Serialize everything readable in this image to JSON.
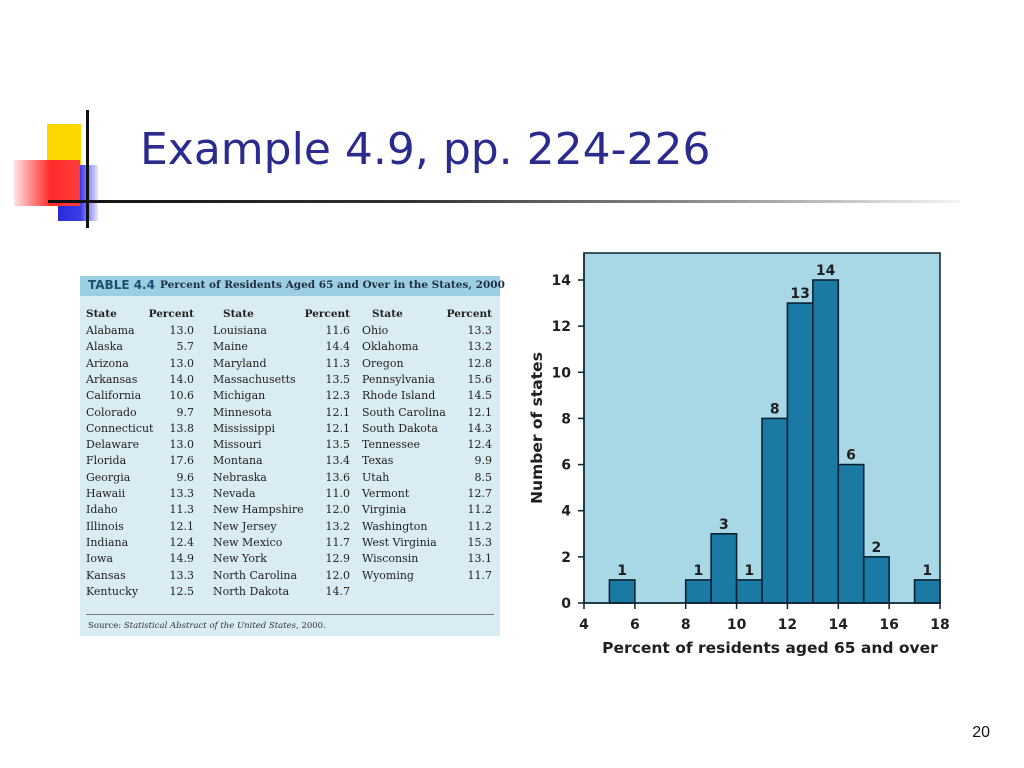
{
  "slide": {
    "title": "Example 4.9, pp. 224-226",
    "page_number": "20"
  },
  "table": {
    "label": "TABLE 4.4",
    "caption": "Percent of Residents Aged 65 and Over in the States, 2000",
    "header_state": "State",
    "header_percent": "Percent",
    "columns": [
      [
        [
          "Alabama",
          "13.0"
        ],
        [
          "Alaska",
          "5.7"
        ],
        [
          "Arizona",
          "13.0"
        ],
        [
          "Arkansas",
          "14.0"
        ],
        [
          "California",
          "10.6"
        ],
        [
          "Colorado",
          "9.7"
        ],
        [
          "Connecticut",
          "13.8"
        ],
        [
          "Delaware",
          "13.0"
        ],
        [
          "Florida",
          "17.6"
        ],
        [
          "Georgia",
          "9.6"
        ],
        [
          "Hawaii",
          "13.3"
        ],
        [
          "Idaho",
          "11.3"
        ],
        [
          "Illinois",
          "12.1"
        ],
        [
          "Indiana",
          "12.4"
        ],
        [
          "Iowa",
          "14.9"
        ],
        [
          "Kansas",
          "13.3"
        ],
        [
          "Kentucky",
          "12.5"
        ]
      ],
      [
        [
          "Louisiana",
          "11.6"
        ],
        [
          "Maine",
          "14.4"
        ],
        [
          "Maryland",
          "11.3"
        ],
        [
          "Massachusetts",
          "13.5"
        ],
        [
          "Michigan",
          "12.3"
        ],
        [
          "Minnesota",
          "12.1"
        ],
        [
          "Mississippi",
          "12.1"
        ],
        [
          "Missouri",
          "13.5"
        ],
        [
          "Montana",
          "13.4"
        ],
        [
          "Nebraska",
          "13.6"
        ],
        [
          "Nevada",
          "11.0"
        ],
        [
          "New Hampshire",
          "12.0"
        ],
        [
          "New Jersey",
          "13.2"
        ],
        [
          "New Mexico",
          "11.7"
        ],
        [
          "New York",
          "12.9"
        ],
        [
          "North Carolina",
          "12.0"
        ],
        [
          "North Dakota",
          "14.7"
        ]
      ],
      [
        [
          "Ohio",
          "13.3"
        ],
        [
          "Oklahoma",
          "13.2"
        ],
        [
          "Oregon",
          "12.8"
        ],
        [
          "Pennsylvania",
          "15.6"
        ],
        [
          "Rhode Island",
          "14.5"
        ],
        [
          "South Carolina",
          "12.1"
        ],
        [
          "South Dakota",
          "14.3"
        ],
        [
          "Tennessee",
          "12.4"
        ],
        [
          "Texas",
          "9.9"
        ],
        [
          "Utah",
          "8.5"
        ],
        [
          "Vermont",
          "12.7"
        ],
        [
          "Virginia",
          "11.2"
        ],
        [
          "Washington",
          "11.2"
        ],
        [
          "West Virginia",
          "15.3"
        ],
        [
          "Wisconsin",
          "13.1"
        ],
        [
          "Wyoming",
          "11.7"
        ]
      ]
    ],
    "source_prefix": "Source: ",
    "source_title": "Statistical Abstract of the United States",
    "source_suffix": ", 2000."
  },
  "chart_data": {
    "type": "bar",
    "title": "",
    "xlabel": "Percent of residents aged 65 and over",
    "ylabel": "Number of states",
    "bin_edges": [
      5,
      6,
      7,
      8,
      9,
      10,
      11,
      12,
      13,
      14,
      15,
      16,
      17,
      18
    ],
    "values": [
      1,
      0,
      0,
      1,
      3,
      1,
      8,
      13,
      14,
      6,
      2,
      0,
      1
    ],
    "xlim": [
      4,
      18
    ],
    "ylim": [
      0,
      14
    ],
    "x_ticks": [
      "4",
      "6",
      "8",
      "10",
      "12",
      "14",
      "16",
      "18"
    ],
    "y_ticks": [
      "0",
      "2",
      "4",
      "6",
      "8",
      "10",
      "12",
      "14"
    ],
    "colors": {
      "bar": "#1a7aa3",
      "background": "#a8d7e6",
      "outline": "#0a2230"
    },
    "grid": false,
    "legend": "none"
  }
}
